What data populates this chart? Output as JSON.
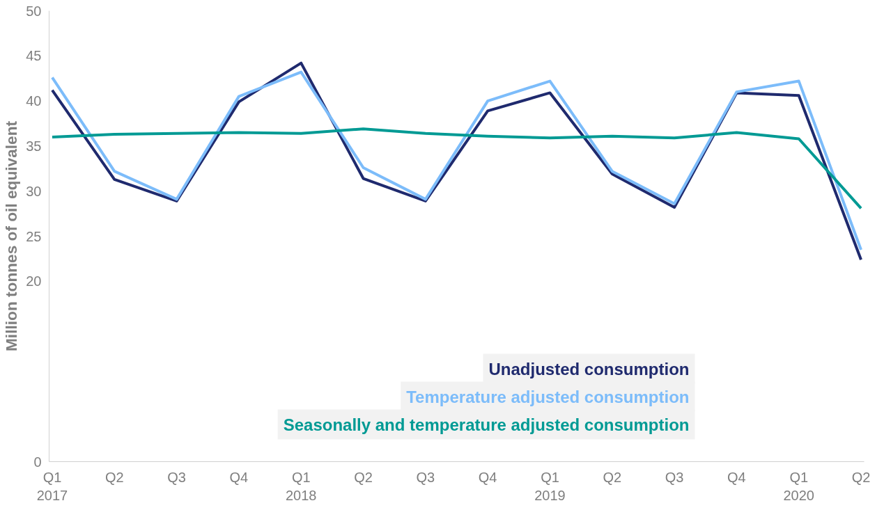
{
  "chart_data": {
    "type": "line",
    "ylabel": "Million tonnes of oil equivalent",
    "categories": [
      "Q1\n2017",
      "Q2",
      "Q3",
      "Q4",
      "Q1\n2018",
      "Q2",
      "Q3",
      "Q4",
      "Q1\n2019",
      "Q2",
      "Q3",
      "Q4",
      "Q1\n2020",
      "Q2"
    ],
    "series": [
      {
        "name": "Unadjusted consumption",
        "color": "#1f2a6e",
        "values": [
          41.2,
          31.3,
          28.9,
          39.9,
          44.2,
          31.4,
          28.9,
          38.9,
          40.9,
          31.9,
          28.2,
          40.9,
          40.6,
          22.4
        ]
      },
      {
        "name": "Temperature adjusted consumption",
        "color": "#7cbcfa",
        "values": [
          42.6,
          32.2,
          29.1,
          40.5,
          43.2,
          32.6,
          29.1,
          40.0,
          42.2,
          32.2,
          28.6,
          41.0,
          42.2,
          23.5
        ]
      },
      {
        "name": "Seasonally and temperature adjusted consumption",
        "color": "#009a94",
        "values": [
          36.0,
          36.3,
          36.4,
          36.5,
          36.4,
          36.9,
          36.4,
          36.1,
          35.9,
          36.1,
          35.9,
          36.5,
          35.8,
          28.1
        ]
      }
    ],
    "ylim": [
      0,
      50
    ],
    "yticks": [
      0,
      20,
      25,
      30,
      35,
      40,
      45,
      50
    ],
    "grid": false,
    "legend": "bottom right",
    "line_style": "solid",
    "marker": "none"
  }
}
